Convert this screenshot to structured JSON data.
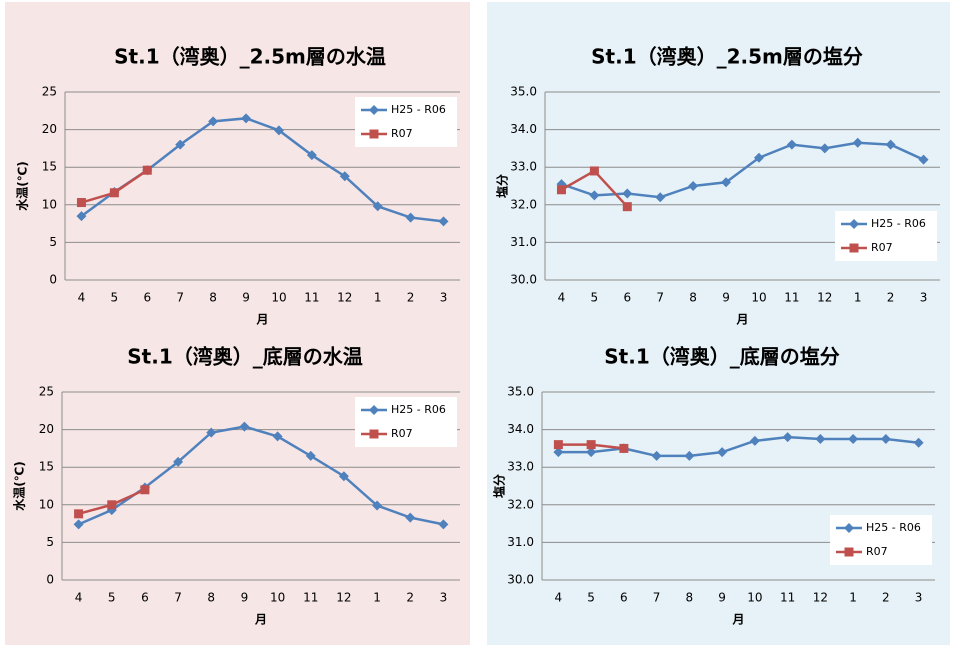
{
  "chart_data": [
    {
      "type": "line",
      "title": "St.1（湾奥）_2.5m層の水温",
      "xlabel": "月",
      "ylabel": "水温(℃)",
      "categories": [
        "4",
        "5",
        "6",
        "7",
        "8",
        "9",
        "10",
        "11",
        "12",
        "1",
        "2",
        "3"
      ],
      "ylim": [
        0,
        25
      ],
      "yticks": [
        0,
        5,
        10,
        15,
        20,
        25
      ],
      "grid": true,
      "legend": "upper right",
      "series": [
        {
          "name": "H25 - R06",
          "color": "#4f81bd",
          "marker": "diamond",
          "values": [
            8.5,
            11.7,
            14.6,
            18.0,
            21.1,
            21.5,
            19.9,
            16.6,
            13.8,
            9.8,
            8.3,
            7.8
          ]
        },
        {
          "name": "R07",
          "color": "#c0504d",
          "marker": "square",
          "values": [
            10.3,
            11.6,
            14.6,
            null,
            null,
            null,
            null,
            null,
            null,
            null,
            null,
            null
          ]
        }
      ]
    },
    {
      "type": "line",
      "title": "St.1（湾奥）_2.5m層の塩分",
      "xlabel": "月",
      "ylabel": "塩分",
      "categories": [
        "4",
        "5",
        "6",
        "7",
        "8",
        "9",
        "10",
        "11",
        "12",
        "1",
        "2",
        "3"
      ],
      "ylim": [
        30,
        35
      ],
      "yticks": [
        {
          "value": 30,
          "label": "30.0"
        },
        {
          "value": 31,
          "label": "31.0"
        },
        {
          "value": 32,
          "label": "32.0"
        },
        {
          "value": 33,
          "label": "33.0"
        },
        {
          "value": 34,
          "label": "34.0"
        },
        {
          "value": 35,
          "label": "35.0"
        }
      ],
      "grid": true,
      "legend": "center right",
      "series": [
        {
          "name": "H25 - R06",
          "color": "#4f81bd",
          "marker": "diamond",
          "values": [
            32.55,
            32.25,
            32.3,
            32.2,
            32.5,
            32.6,
            33.25,
            33.6,
            33.5,
            33.65,
            33.6,
            33.2
          ]
        },
        {
          "name": "R07",
          "color": "#c0504d",
          "marker": "square",
          "values": [
            32.4,
            32.9,
            31.95,
            null,
            null,
            null,
            null,
            null,
            null,
            null,
            null,
            null
          ]
        }
      ]
    },
    {
      "type": "line",
      "title": "St.1（湾奥）_底層の水温",
      "xlabel": "月",
      "ylabel": "水温(℃)",
      "categories": [
        "4",
        "5",
        "6",
        "7",
        "8",
        "9",
        "10",
        "11",
        "12",
        "1",
        "2",
        "3"
      ],
      "ylim": [
        0,
        25
      ],
      "yticks": [
        0,
        5,
        10,
        15,
        20,
        25
      ],
      "grid": true,
      "legend": "upper right",
      "series": [
        {
          "name": "H25 - R06",
          "color": "#4f81bd",
          "marker": "diamond",
          "values": [
            7.4,
            9.3,
            12.3,
            15.7,
            19.6,
            20.4,
            19.1,
            16.5,
            13.8,
            9.9,
            8.3,
            7.4
          ]
        },
        {
          "name": "R07",
          "color": "#c0504d",
          "marker": "square",
          "values": [
            8.8,
            10.0,
            12.0,
            null,
            null,
            null,
            null,
            null,
            null,
            null,
            null,
            null
          ]
        }
      ]
    },
    {
      "type": "line",
      "title": "St.1（湾奥）_底層の塩分",
      "xlabel": "月",
      "ylabel": "塩分",
      "categories": [
        "4",
        "5",
        "6",
        "7",
        "8",
        "9",
        "10",
        "11",
        "12",
        "1",
        "2",
        "3"
      ],
      "ylim": [
        30,
        35
      ],
      "yticks": [
        {
          "value": 30,
          "label": "30.0"
        },
        {
          "value": 31,
          "label": "31.0"
        },
        {
          "value": 32,
          "label": "32.0"
        },
        {
          "value": 33,
          "label": "33.0"
        },
        {
          "value": 34,
          "label": "34.0"
        },
        {
          "value": 35,
          "label": "35.0"
        }
      ],
      "grid": true,
      "legend": "lower right",
      "series": [
        {
          "name": "H25 - R06",
          "color": "#4f81bd",
          "marker": "diamond",
          "values": [
            33.4,
            33.4,
            33.5,
            33.3,
            33.3,
            33.4,
            33.7,
            33.8,
            33.75,
            33.75,
            33.75,
            33.65
          ]
        },
        {
          "name": "R07",
          "color": "#c0504d",
          "marker": "square",
          "values": [
            33.6,
            33.6,
            33.5,
            null,
            null,
            null,
            null,
            null,
            null,
            null,
            null,
            null
          ]
        }
      ]
    }
  ]
}
